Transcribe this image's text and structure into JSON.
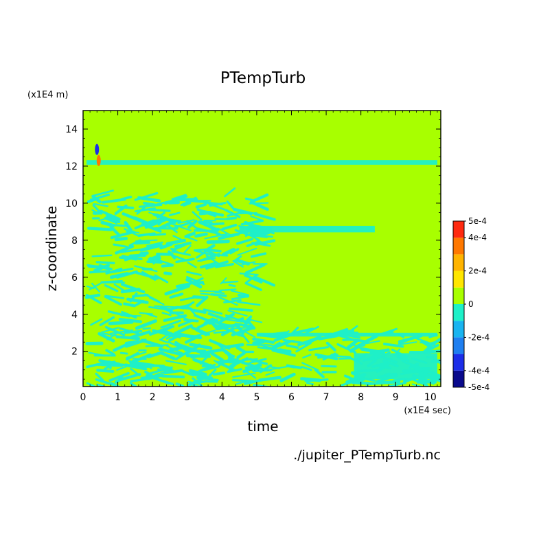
{
  "chart_data": {
    "type": "heatmap",
    "title": "PTempTurb",
    "xlabel": "time",
    "ylabel": "z-coordinate",
    "x_units": "(x1E4 sec)",
    "y_units": "(x1E4 m)",
    "xlim": [
      0,
      10.3
    ],
    "ylim": [
      0.1,
      15
    ],
    "x_ticks": [
      0,
      1,
      2,
      3,
      4,
      5,
      6,
      7,
      8,
      9,
      10
    ],
    "y_ticks": [
      2,
      4,
      6,
      8,
      10,
      12,
      14
    ],
    "grid": false,
    "colorbar": {
      "min": -0.0005,
      "max": 0.0005,
      "levels": [
        -0.0005,
        -0.0004,
        -0.0003,
        -0.0002,
        -0.0001,
        0,
        0.0001,
        0.0002,
        0.0003,
        0.0004,
        0.0005
      ],
      "colors": [
        "#0a0a8c",
        "#1c2ee8",
        "#1f7ff0",
        "#19b4f0",
        "#1ef0c8",
        "#a8ff00",
        "#ffe600",
        "#ffb400",
        "#ff7800",
        "#ff2a10"
      ],
      "tick_labels": [
        "5e-4",
        "4e-4",
        "2e-4",
        "0",
        "-2e-4",
        "-4e-4",
        "-5e-4"
      ]
    },
    "background_value": 0,
    "features": [
      {
        "kind": "band",
        "value": -0.0001,
        "t_start": 0.1,
        "t_end": 10.2,
        "z": 12.2,
        "thickness": 0.25
      },
      {
        "kind": "band",
        "value": -0.0001,
        "t_start": 5.0,
        "t_end": 10.2,
        "z": 2.9,
        "thickness": 0.2
      },
      {
        "kind": "band",
        "value": -0.0001,
        "t_start": 4.5,
        "t_end": 8.4,
        "z": 8.6,
        "thickness": 0.35
      },
      {
        "kind": "band",
        "value": -0.0001,
        "t_start": 7.8,
        "t_end": 10.2,
        "z": 1.2,
        "thickness": 1.4
      },
      {
        "kind": "turbulent_region",
        "value": -0.0001,
        "t_start": 0.1,
        "t_end": 5.0,
        "z_start": 0.1,
        "z_end": 10.5
      },
      {
        "kind": "turbulent_region",
        "value": -0.0001,
        "t_start": 5.0,
        "t_end": 10.2,
        "z_start": 0.1,
        "z_end": 3.0
      },
      {
        "kind": "spike",
        "value": 0.0003,
        "t": 0.45,
        "z": 12.3
      },
      {
        "kind": "spike",
        "value": -0.0004,
        "t": 0.4,
        "z": 12.9
      }
    ]
  },
  "footer": {
    "source_file": "./jupiter_PTempTurb.nc"
  }
}
